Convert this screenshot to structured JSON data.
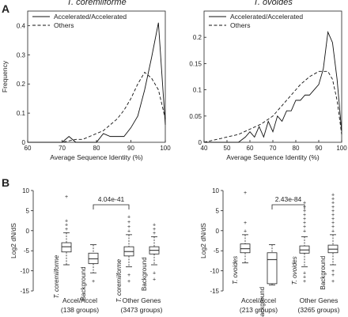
{
  "panel_labels": [
    "A",
    "B"
  ],
  "chart_data": [
    {
      "type": "line",
      "title": "T. coremiiforme",
      "xlabel": "Average Sequence Identity (%)",
      "ylabel": "Frequency",
      "xlim": [
        60,
        100
      ],
      "ylim": [
        0,
        0.45
      ],
      "x_ticks": [
        "60",
        "70",
        "80",
        "90",
        "100"
      ],
      "y_ticks": [
        "0",
        "0.1",
        "0.2",
        "0.3",
        "0.4"
      ],
      "legend_position": "top-left",
      "series": [
        {
          "name": "Accelerated/Accelerated",
          "style": "solid",
          "x": [
            60,
            62,
            64,
            66,
            68,
            70,
            72,
            74,
            76,
            78,
            80,
            82,
            84,
            86,
            88,
            90,
            92,
            94,
            96,
            98,
            100
          ],
          "y": [
            0,
            0,
            0,
            0,
            0,
            0,
            0.02,
            0,
            0,
            0,
            0,
            0.03,
            0.02,
            0.02,
            0.02,
            0.05,
            0.09,
            0.18,
            0.29,
            0.41,
            0.06
          ]
        },
        {
          "name": "Others",
          "style": "dashed",
          "x": [
            60,
            62,
            64,
            66,
            68,
            70,
            72,
            74,
            76,
            78,
            80,
            82,
            84,
            86,
            88,
            90,
            92,
            94,
            96,
            98,
            100
          ],
          "y": [
            0,
            0,
            0,
            0,
            0,
            0,
            0.005,
            0.01,
            0.01,
            0.02,
            0.03,
            0.04,
            0.06,
            0.08,
            0.11,
            0.15,
            0.2,
            0.24,
            0.22,
            0.18,
            0.08
          ]
        }
      ]
    },
    {
      "type": "line",
      "title": "T. ovoides",
      "xlabel": "Average Sequence Identity (%)",
      "ylabel": "",
      "xlim": [
        40,
        100
      ],
      "ylim": [
        0,
        0.25
      ],
      "x_ticks": [
        "40",
        "50",
        "60",
        "70",
        "80",
        "90",
        "100"
      ],
      "y_ticks": [
        "0",
        "0.05",
        "0.1",
        "0.15",
        "0.2"
      ],
      "legend_position": "top-left",
      "series": [
        {
          "name": "Accelerated/Accelerated",
          "style": "solid",
          "x": [
            40,
            50,
            55,
            58,
            60,
            62,
            64,
            66,
            68,
            70,
            72,
            74,
            76,
            78,
            80,
            82,
            84,
            86,
            88,
            90,
            92,
            94,
            96,
            98,
            100
          ],
          "y": [
            0,
            0,
            0,
            0.01,
            0.02,
            0.01,
            0.03,
            0.01,
            0.04,
            0.02,
            0.05,
            0.04,
            0.06,
            0.06,
            0.08,
            0.08,
            0.09,
            0.09,
            0.1,
            0.11,
            0.14,
            0.21,
            0.19,
            0.12,
            0.02
          ]
        },
        {
          "name": "Others",
          "style": "dashed",
          "x": [
            40,
            45,
            50,
            55,
            60,
            65,
            70,
            74,
            78,
            82,
            86,
            90,
            94,
            96,
            98,
            100
          ],
          "y": [
            0,
            0.005,
            0.01,
            0.015,
            0.025,
            0.035,
            0.05,
            0.07,
            0.09,
            0.11,
            0.125,
            0.135,
            0.135,
            0.12,
            0.08,
            0.015
          ]
        }
      ]
    },
    {
      "type": "box",
      "ylabel": "Log2 dN/dS",
      "ylim": [
        -15,
        10
      ],
      "y_ticks": [
        "10",
        "5",
        "0",
        "-5",
        "-10",
        "-15"
      ],
      "significance": {
        "label": "4.04e-41",
        "between": [
          "T. coremiiforme",
          "Background"
        ]
      },
      "groups": [
        {
          "label": "Accel/Accel",
          "sublabel": "(138 groups)",
          "boxes": [
            {
              "label": "T. coremiiforme",
              "italic": true,
              "whisker_low": -8.5,
              "q1": -5.3,
              "median": -4.0,
              "q3": -3.0,
              "whisker_high": -0.5,
              "outliers": [
                0.5,
                1.5,
                2.5,
                8.5
              ]
            },
            {
              "label": "Background",
              "italic": false,
              "whisker_low": -10.5,
              "q1": -8.2,
              "median": -7.0,
              "q3": -5.6,
              "whisker_high": -3.5,
              "outliers": [
                -12.5
              ]
            }
          ]
        },
        {
          "label": "Other Genes",
          "sublabel": "(3473 groups)",
          "boxes": [
            {
              "label": "T. coremiiforme",
              "italic": true,
              "whisker_low": -9,
              "q1": -6.3,
              "median": -5.2,
              "q3": -4.0,
              "whisker_high": -1.0,
              "outliers": [
                -11,
                -12.5,
                0,
                1,
                2.2,
                3.5
              ]
            },
            {
              "label": "Background",
              "italic": false,
              "whisker_low": -8.5,
              "q1": -5.8,
              "median": -4.9,
              "q3": -4.0,
              "whisker_high": -1.5,
              "outliers": [
                -10.5,
                -12,
                -0.5,
                0.5,
                1.5
              ]
            }
          ]
        }
      ]
    },
    {
      "type": "box",
      "ylabel": "Log2 dN/dS",
      "ylim": [
        -15,
        10
      ],
      "y_ticks": [
        "10",
        "5",
        "0",
        "-5",
        "-10",
        "-15"
      ],
      "significance": {
        "label": "2.43e-84",
        "between": [
          "T. ovoides",
          "Background"
        ]
      },
      "groups": [
        {
          "label": "Accel/Accel",
          "sublabel": "(213 groups)",
          "boxes": [
            {
              "label": "T. ovoides",
              "italic": true,
              "whisker_low": -8,
              "q1": -5.5,
              "median": -4.5,
              "q3": -3.3,
              "whisker_high": -1.0,
              "outliers": [
                0,
                2,
                9.5
              ]
            },
            {
              "label": "Background",
              "italic": false,
              "whisker_low": -13.5,
              "q1": -13.2,
              "median": -7.2,
              "q3": -5.5,
              "whisker_high": -3.5,
              "outliers": []
            }
          ]
        },
        {
          "label": "Other Genes",
          "sublabel": "(3265 groups)",
          "boxes": [
            {
              "label": "T. ovoides",
              "italic": true,
              "whisker_low": -9,
              "q1": -5.6,
              "median": -4.8,
              "q3": -3.8,
              "whisker_high": -1.5,
              "outliers": [
                -10.5,
                -11.5,
                -12.5,
                0,
                1,
                2,
                3,
                4,
                5,
                6,
                7
              ]
            },
            {
              "label": "Background",
              "italic": false,
              "whisker_low": -8.5,
              "q1": -5.5,
              "median": -4.6,
              "q3": -3.6,
              "whisker_high": -1.0,
              "outliers": [
                -10,
                -11,
                -12.5,
                0,
                1,
                2,
                3,
                4,
                5,
                6,
                7,
                8,
                9
              ]
            }
          ]
        }
      ]
    }
  ]
}
